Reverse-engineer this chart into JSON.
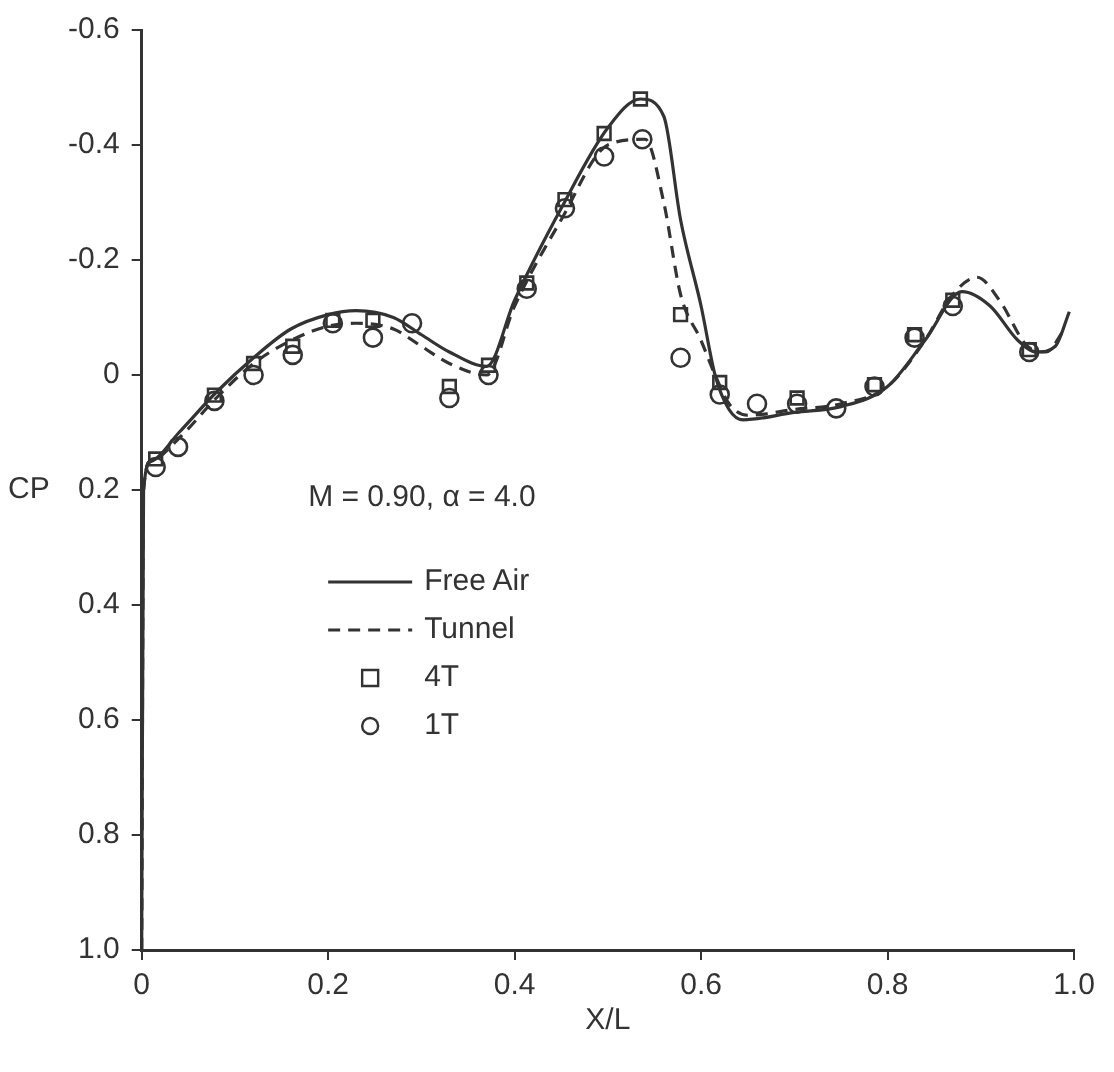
{
  "chart_data": {
    "type": "line",
    "xlabel": "X/L",
    "ylabel": "CP",
    "annotations": [
      "M = 0.90, α = 4.0"
    ],
    "xlim": [
      0,
      1.0
    ],
    "xticks": [
      0,
      0.2,
      0.4,
      0.6,
      0.8,
      {
        "value": 1.0,
        "label": "1.0"
      }
    ],
    "ylim": [
      1.0,
      -0.6
    ],
    "yticks": [
      -0.6,
      -0.4,
      -0.2,
      0,
      0.2,
      0.4,
      0.6,
      0.8,
      {
        "value": 1.0,
        "label": "1.0"
      }
    ],
    "grid": false,
    "legend": "bottom left",
    "series": [
      {
        "name": "Free Air",
        "line_style": "solid",
        "marker": "none",
        "color": "#333333",
        "x": [
          0,
          0.002,
          0.01,
          0.04,
          0.08,
          0.12,
          0.16,
          0.2,
          0.23,
          0.27,
          0.3,
          0.33,
          0.37,
          0.4,
          0.45,
          0.5,
          0.535,
          0.56,
          0.578,
          0.6,
          0.615,
          0.63,
          0.645,
          0.7,
          0.75,
          0.8,
          0.84,
          0.88,
          0.91,
          0.94,
          0.96,
          0.98,
          0.995
        ],
        "values": [
          1.0,
          0.2,
          0.15,
          0.1,
          0.03,
          -0.03,
          -0.08,
          -0.105,
          -0.112,
          -0.1,
          -0.07,
          -0.04,
          -0.015,
          -0.13,
          -0.29,
          -0.43,
          -0.48,
          -0.45,
          -0.27,
          -0.12,
          0.0,
          0.06,
          0.078,
          0.065,
          0.055,
          0.02,
          -0.06,
          -0.145,
          -0.12,
          -0.06,
          -0.04,
          -0.05,
          -0.11
        ]
      },
      {
        "name": "Tunnel",
        "line_style": "dashed",
        "marker": "none",
        "color": "#333333",
        "x": [
          0,
          0.002,
          0.01,
          0.04,
          0.08,
          0.12,
          0.16,
          0.2,
          0.23,
          0.27,
          0.3,
          0.33,
          0.37,
          0.4,
          0.45,
          0.5,
          0.54,
          0.56,
          0.578,
          0.6,
          0.615,
          0.63,
          0.65,
          0.7,
          0.75,
          0.8,
          0.84,
          0.87,
          0.896,
          0.92,
          0.95,
          0.97,
          0.99
        ],
        "values": [
          1.0,
          0.2,
          0.15,
          0.11,
          0.04,
          -0.02,
          -0.06,
          -0.085,
          -0.09,
          -0.08,
          -0.05,
          -0.02,
          0.0,
          -0.12,
          -0.27,
          -0.4,
          -0.41,
          -0.3,
          -0.14,
          -0.06,
          0.0,
          0.05,
          0.07,
          0.06,
          0.05,
          0.02,
          -0.06,
          -0.14,
          -0.17,
          -0.13,
          -0.05,
          -0.04,
          -0.08
        ]
      },
      {
        "name": "4T",
        "type": "scatter",
        "marker": "square",
        "color": "#333333",
        "x": [
          0.015,
          0.078,
          0.12,
          0.162,
          0.205,
          0.248,
          0.33,
          0.372,
          0.413,
          0.454,
          0.496,
          0.535,
          0.578,
          0.62,
          0.703,
          0.786,
          0.829,
          0.87,
          0.952
        ],
        "values": [
          0.146,
          0.035,
          -0.02,
          -0.05,
          -0.095,
          -0.095,
          0.02,
          -0.017,
          -0.16,
          -0.305,
          -0.42,
          -0.48,
          -0.105,
          0.013,
          0.04,
          0.017,
          -0.07,
          -0.13,
          -0.044
        ]
      },
      {
        "name": "1T",
        "type": "scatter",
        "marker": "circle",
        "color": "#333333",
        "x": [
          0.015,
          0.039,
          0.078,
          0.12,
          0.162,
          0.205,
          0.248,
          0.29,
          0.33,
          0.372,
          0.413,
          0.454,
          0.496,
          0.537,
          0.578,
          0.62,
          0.66,
          0.703,
          0.745,
          0.786,
          0.829,
          0.87,
          0.952
        ],
        "values": [
          0.16,
          0.125,
          0.045,
          0.0,
          -0.035,
          -0.09,
          -0.065,
          -0.09,
          0.04,
          0.0,
          -0.15,
          -0.29,
          -0.38,
          -0.41,
          -0.03,
          0.034,
          0.05,
          0.05,
          0.058,
          0.02,
          -0.065,
          -0.12,
          -0.04
        ]
      }
    ]
  }
}
